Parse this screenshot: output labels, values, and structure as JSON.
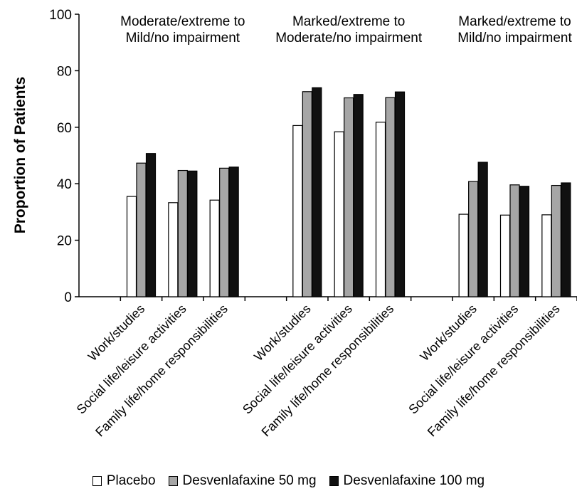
{
  "chart_data": {
    "type": "bar",
    "title": "",
    "ylabel": "Proportion of Patients",
    "xlabel": "",
    "ylim": [
      0,
      100
    ],
    "yticks": [
      0,
      20,
      40,
      60,
      80,
      100
    ],
    "grid": false,
    "legend_position": "bottom",
    "groups": [
      {
        "title_line1": "Moderate/extreme to",
        "title_line2": "Mild/no impairment",
        "categories": [
          "Work/studies",
          "Social life/leisure activities",
          "Family life/home responsibilities"
        ],
        "series_values": [
          [
            35.5,
            33.3,
            34.2
          ],
          [
            47.3,
            44.7,
            45.5
          ],
          [
            50.7,
            44.5,
            45.9
          ]
        ]
      },
      {
        "title_line1": "Marked/extreme to",
        "title_line2": "Moderate/no impairment",
        "categories": [
          "Work/studies",
          "Social life/leisure activities",
          "Family life/home responsibilities"
        ],
        "series_values": [
          [
            60.6,
            58.4,
            61.8
          ],
          [
            72.6,
            70.4,
            70.5
          ],
          [
            74.0,
            71.6,
            72.5
          ]
        ]
      },
      {
        "title_line1": "Marked/extreme to",
        "title_line2": "Mild/no impairment",
        "categories": [
          "Work/studies",
          "Social life/leisure activities",
          "Family life/home responsibilities"
        ],
        "series_values": [
          [
            29.2,
            28.9,
            29.0
          ],
          [
            40.8,
            39.6,
            39.4
          ],
          [
            47.6,
            39.1,
            40.3
          ]
        ]
      }
    ],
    "series": [
      {
        "name": "Placebo",
        "color": "#ffffff"
      },
      {
        "name": "Desvenlafaxine 50 mg",
        "color": "#a6a6a6"
      },
      {
        "name": "Desvenlafaxine 100 mg",
        "color": "#111111"
      }
    ]
  }
}
